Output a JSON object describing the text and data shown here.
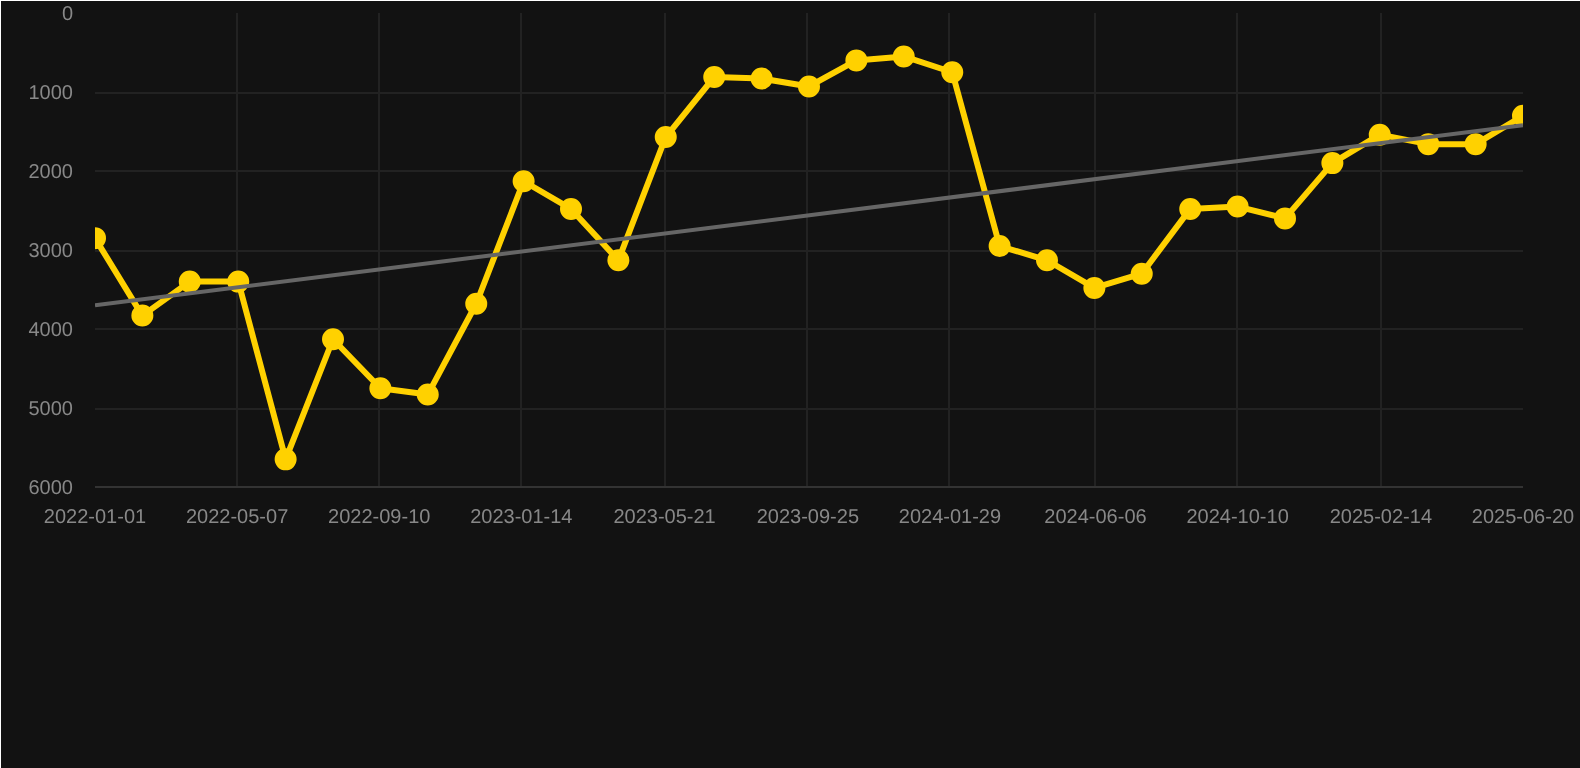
{
  "chart_data": {
    "type": "line",
    "x": [
      "2022-01-01",
      "2022-02-12",
      "2022-03-26",
      "2022-05-08",
      "2022-06-19",
      "2022-07-31",
      "2022-09-11",
      "2022-10-23",
      "2022-12-05",
      "2023-01-16",
      "2023-02-27",
      "2023-04-10",
      "2023-05-22",
      "2023-07-04",
      "2023-08-15",
      "2023-09-26",
      "2023-11-07",
      "2023-12-19",
      "2024-01-31",
      "2024-03-13",
      "2024-04-24",
      "2024-06-05",
      "2024-07-17",
      "2024-08-29",
      "2024-10-10",
      "2024-11-21",
      "2025-01-02",
      "2025-02-13",
      "2025-03-28",
      "2025-05-09",
      "2025-06-20"
    ],
    "series": [
      {
        "color": "#ffd100",
        "marker": "circle",
        "values": [
          2850,
          3830,
          3400,
          3400,
          5650,
          4130,
          4750,
          4830,
          3680,
          2130,
          2480,
          3130,
          1570,
          810,
          830,
          930,
          600,
          550,
          750,
          2950,
          3130,
          3480,
          3300,
          2480,
          2450,
          2600,
          1900,
          1540,
          1660,
          1660,
          1300
        ]
      },
      {
        "type": "line",
        "color": "#666666",
        "marker": "none",
        "x": [
          "2022-01-01",
          "2025-06-20"
        ],
        "values": [
          3700,
          1420
        ]
      }
    ],
    "xlim": [
      "2022-01-01",
      "2025-06-20"
    ],
    "xticks": [
      "2022-01-01",
      "2022-05-07",
      "2022-09-10",
      "2023-01-14",
      "2023-05-21",
      "2023-09-25",
      "2024-01-29",
      "2024-06-06",
      "2024-10-10",
      "2025-02-14",
      "2025-06-20"
    ],
    "ylim": [
      6000,
      0
    ],
    "yticks": [
      0,
      1000,
      2000,
      3000,
      4000,
      5000,
      6000
    ],
    "grid": true
  }
}
